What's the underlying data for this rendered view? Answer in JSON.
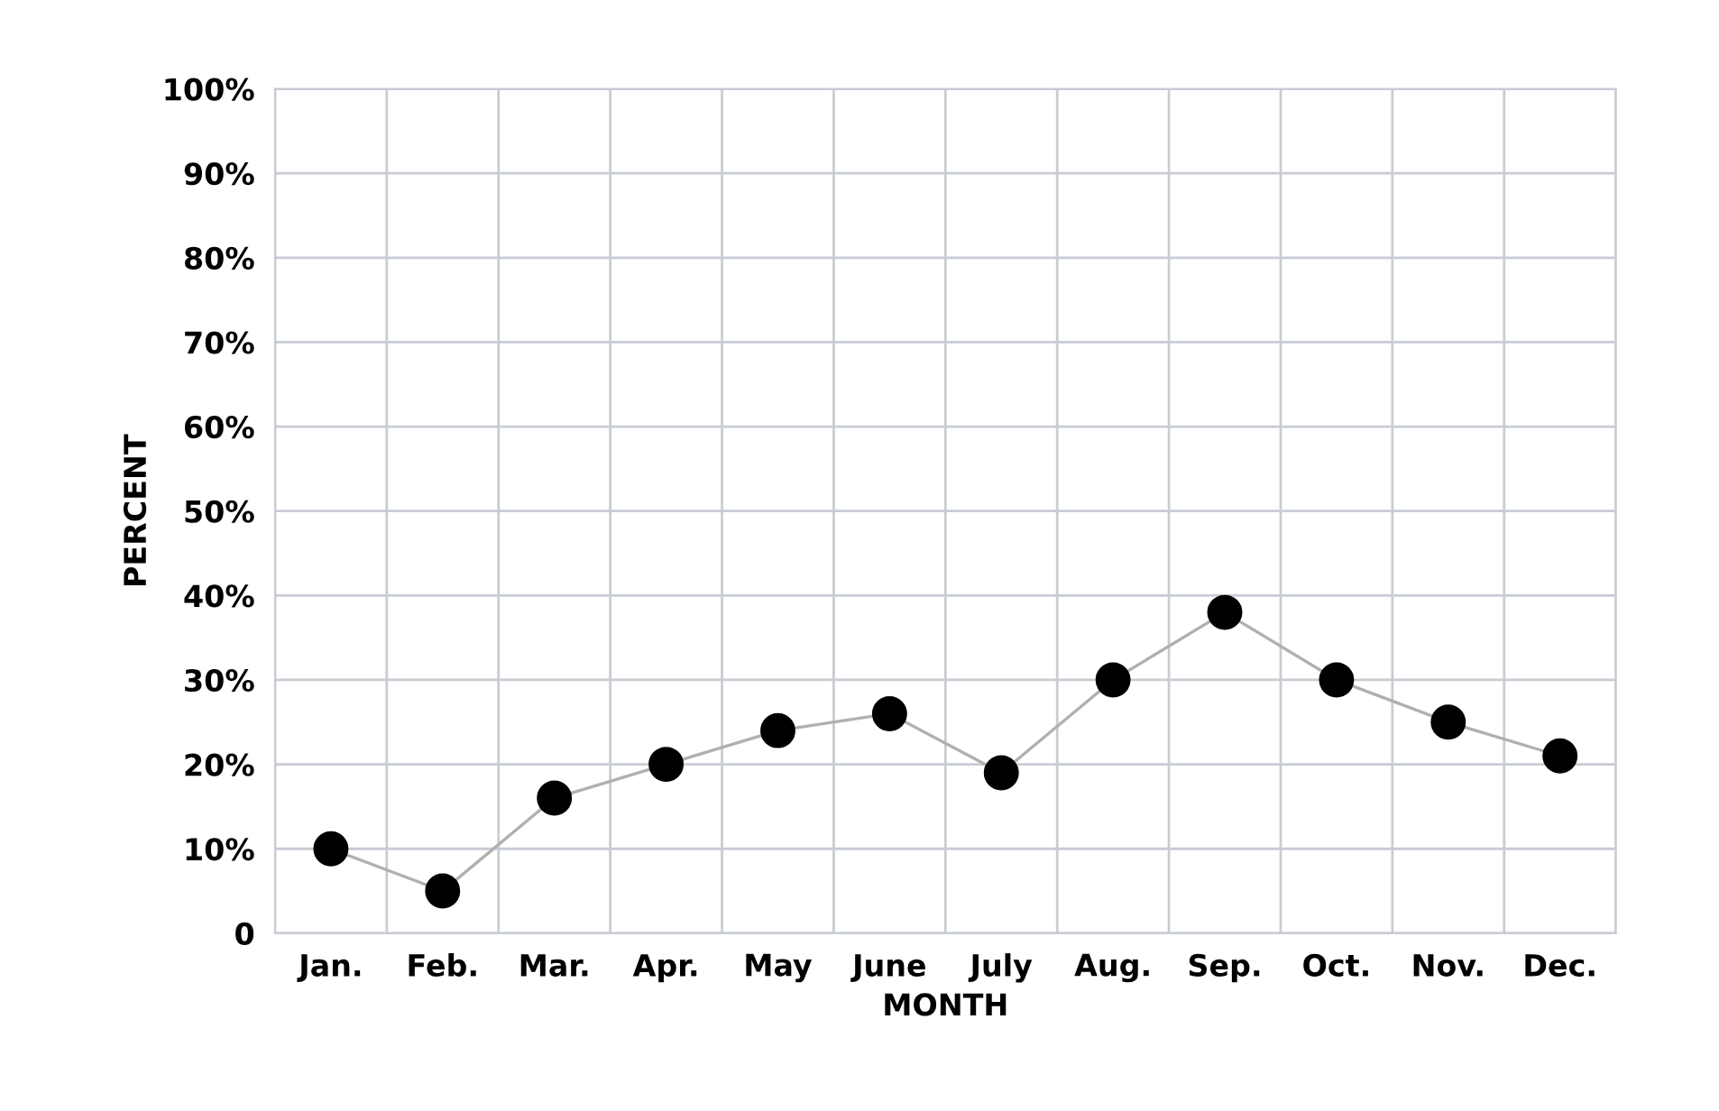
{
  "chart_data": {
    "type": "line",
    "xlabel": "MONTH",
    "ylabel": "PERCENT",
    "categories": [
      "Jan.",
      "Feb.",
      "Mar.",
      "Apr.",
      "May",
      "June",
      "July",
      "Aug.",
      "Sep.",
      "Oct.",
      "Nov.",
      "Dec."
    ],
    "series": [
      {
        "color": "#000000",
        "values": [
          10,
          5,
          16,
          20,
          24,
          26,
          19,
          30,
          38,
          30,
          25,
          21
        ]
      }
    ],
    "ylim": [
      0,
      100
    ],
    "yticks": [
      0,
      {
        "value": 10,
        "label": "10%"
      },
      {
        "value": 20,
        "label": "20%"
      },
      {
        "value": 30,
        "label": "30%"
      },
      {
        "value": 40,
        "label": "40%"
      },
      {
        "value": 50,
        "label": "50%"
      },
      {
        "value": 60,
        "label": "60%"
      },
      {
        "value": 70,
        "label": "70%"
      },
      {
        "value": 80,
        "label": "80%"
      },
      {
        "value": 90,
        "label": "90%"
      },
      {
        "value": 100,
        "label": "100%"
      }
    ],
    "grid": true,
    "marker": "circle",
    "line_style": "solid"
  }
}
